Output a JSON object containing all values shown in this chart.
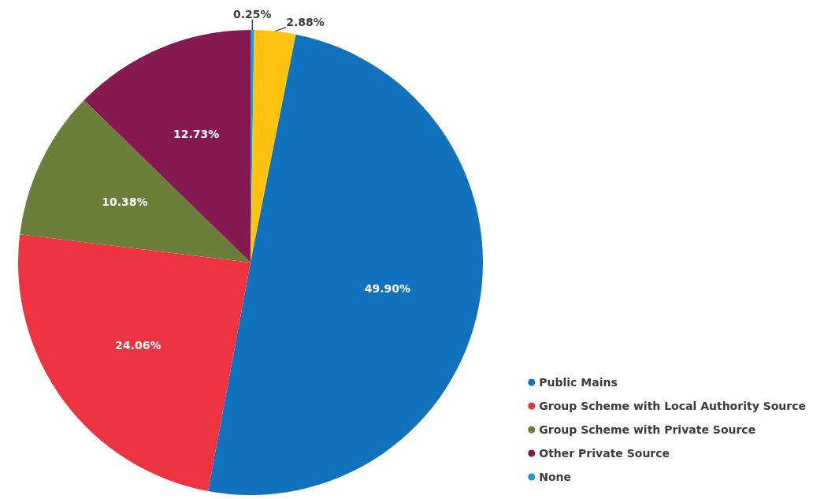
{
  "chart_data": {
    "type": "pie",
    "categories": [
      "None",
      null,
      "Public Mains",
      "Group Scheme with Local Authority Source",
      "Group Scheme with Private Source",
      "Other Private Source"
    ],
    "values": [
      0.25,
      2.88,
      49.9,
      24.06,
      10.38,
      12.73
    ],
    "colors": [
      "#1a9ad6",
      "#ffc20e",
      "#1072bc",
      "#ee3340",
      "#6b7f3a",
      "#851a50"
    ],
    "value_labels": [
      "0.25%",
      "2.88%",
      "49.90%",
      "24.06%",
      "10.38%",
      "12.73%"
    ],
    "legend": "bottom right"
  }
}
